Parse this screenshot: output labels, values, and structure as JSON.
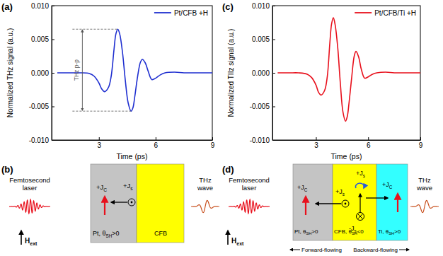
{
  "chart_data": [
    {
      "type": "line",
      "panel_label": "(a)",
      "x_label": "Time (ps)",
      "y_label": "Normalized THz signal (a.u.)",
      "xlim": [
        0.5,
        9
      ],
      "xticks": [
        3,
        6,
        9
      ],
      "ylim": [
        -0.01,
        0.01
      ],
      "yticks": [
        {
          "value": -0.01,
          "label": "-0.010"
        },
        {
          "value": -0.005,
          "label": "-0.005"
        },
        {
          "value": 0,
          "label": "0.000"
        },
        {
          "value": 0.005,
          "label": "0.005"
        },
        {
          "value": 0.01,
          "label": "0.010"
        }
      ],
      "legend": "top-right",
      "x": [
        0.8,
        1,
        1.5,
        2,
        2.5,
        2.75,
        3,
        3.15,
        3.3,
        3.5,
        3.65,
        3.8,
        3.9,
        4.0,
        4.1,
        4.25,
        4.4,
        4.55,
        4.7,
        4.8,
        4.9,
        5.05,
        5.2,
        5.3,
        5.45,
        5.6,
        5.8,
        6,
        6.25,
        6.5,
        7,
        7.5,
        8,
        8.5,
        9
      ],
      "series": [
        {
          "name": "Pt/CFB +H",
          "color": "#1f2fd0",
          "values": [
            0,
            0,
            0,
            0,
            -0.0001,
            -0.0005,
            -0.0015,
            -0.0024,
            -0.0028,
            -0.0022,
            -0.0005,
            0.0035,
            0.0058,
            0.0065,
            0.0058,
            0.003,
            -0.0012,
            -0.0045,
            -0.0057,
            -0.0052,
            -0.0035,
            -0.0005,
            0.0016,
            0.002,
            0.0015,
            0.0003,
            -0.001,
            -0.0008,
            -0.0003,
            0,
            0.0001,
            0,
            0,
            0,
            0
          ]
        }
      ],
      "annotation": {
        "text": "THz p-p",
        "x": 1.6,
        "peak": {
          "x": 4.0,
          "y": 0.0065
        },
        "trough": {
          "x": 4.7,
          "y": -0.0057
        }
      }
    },
    {
      "type": "line",
      "panel_label": "(c)",
      "x_label": "Time (ps)",
      "y_label": "Normalized TIIz signal (a.u.)",
      "xlim": [
        0.5,
        9
      ],
      "xticks": [
        3,
        6,
        9
      ],
      "ylim": [
        -0.01,
        0.01
      ],
      "yticks": [
        {
          "value": -0.01,
          "label": "-0.010"
        },
        {
          "value": -0.005,
          "label": "-0.005"
        },
        {
          "value": 0,
          "label": "0.000"
        },
        {
          "value": 0.005,
          "label": "0.005"
        },
        {
          "value": 0.01,
          "label": "0.010"
        }
      ],
      "legend": "top-right",
      "x": [
        0.8,
        1,
        1.5,
        2,
        2.5,
        2.75,
        3,
        3.15,
        3.3,
        3.5,
        3.65,
        3.8,
        3.9,
        4.0,
        4.1,
        4.25,
        4.4,
        4.55,
        4.7,
        4.8,
        4.9,
        5.05,
        5.2,
        5.3,
        5.45,
        5.6,
        5.8,
        6,
        6.25,
        6.5,
        7,
        7.5,
        8,
        8.5,
        9
      ],
      "series": [
        {
          "name": "Pt/CFB/Ti +H",
          "color": "#e8101c",
          "values": [
            0,
            0,
            0,
            0,
            -0.0002,
            -0.0007,
            -0.0018,
            -0.0029,
            -0.0033,
            -0.0026,
            -0.0006,
            0.0045,
            0.0073,
            0.0082,
            0.0072,
            0.0038,
            -0.0015,
            -0.0058,
            -0.0072,
            -0.0065,
            -0.0045,
            -0.0008,
            0.0025,
            0.0032,
            0.0024,
            0.0006,
            -0.0008,
            -0.0006,
            -0.0002,
            0,
            0.0001,
            0,
            0,
            0,
            0
          ]
        }
      ]
    }
  ],
  "diagrams": [
    {
      "panel_label": "(b)",
      "laser": "Femtosecond laser",
      "thz": "THz wave",
      "field": {
        "text": "H",
        "sub": "ext"
      },
      "layers": [
        {
          "text": "Pt, θ",
          "sub": "SH",
          "after": ">0",
          "color": "#c4c4c4"
        },
        {
          "text": "CFB",
          "color": "#ffff00"
        }
      ],
      "labels": [
        {
          "text": "+J",
          "sub": "C"
        },
        {
          "text": "+J",
          "sub": "s"
        }
      ]
    },
    {
      "panel_label": "(d)",
      "laser": "Femtosecond laser",
      "thz": "THz wave",
      "field": {
        "text": "H",
        "sub": "ext"
      },
      "layers": [
        {
          "text": "Pt, θ",
          "sub": "SH",
          "after": ">0",
          "color": "#c4c4c4"
        },
        {
          "text": "CFB, θ",
          "sub": "SH",
          "after": "<0",
          "color": "#ffff00"
        },
        {
          "text": "Ti, θ",
          "sub": "SH",
          "after": ">0",
          "color": "#33ffff"
        }
      ],
      "labels": [
        {
          "text": "+J",
          "sub": "C"
        },
        {
          "text": "+J",
          "sub": "s"
        },
        {
          "text": "+J",
          "sub": "s"
        },
        {
          "text": "-J",
          "sub": "s"
        },
        {
          "text": "+J",
          "sub": "C"
        }
      ],
      "flows": [
        "Forward-flowing",
        "Backward-flowing"
      ]
    }
  ]
}
